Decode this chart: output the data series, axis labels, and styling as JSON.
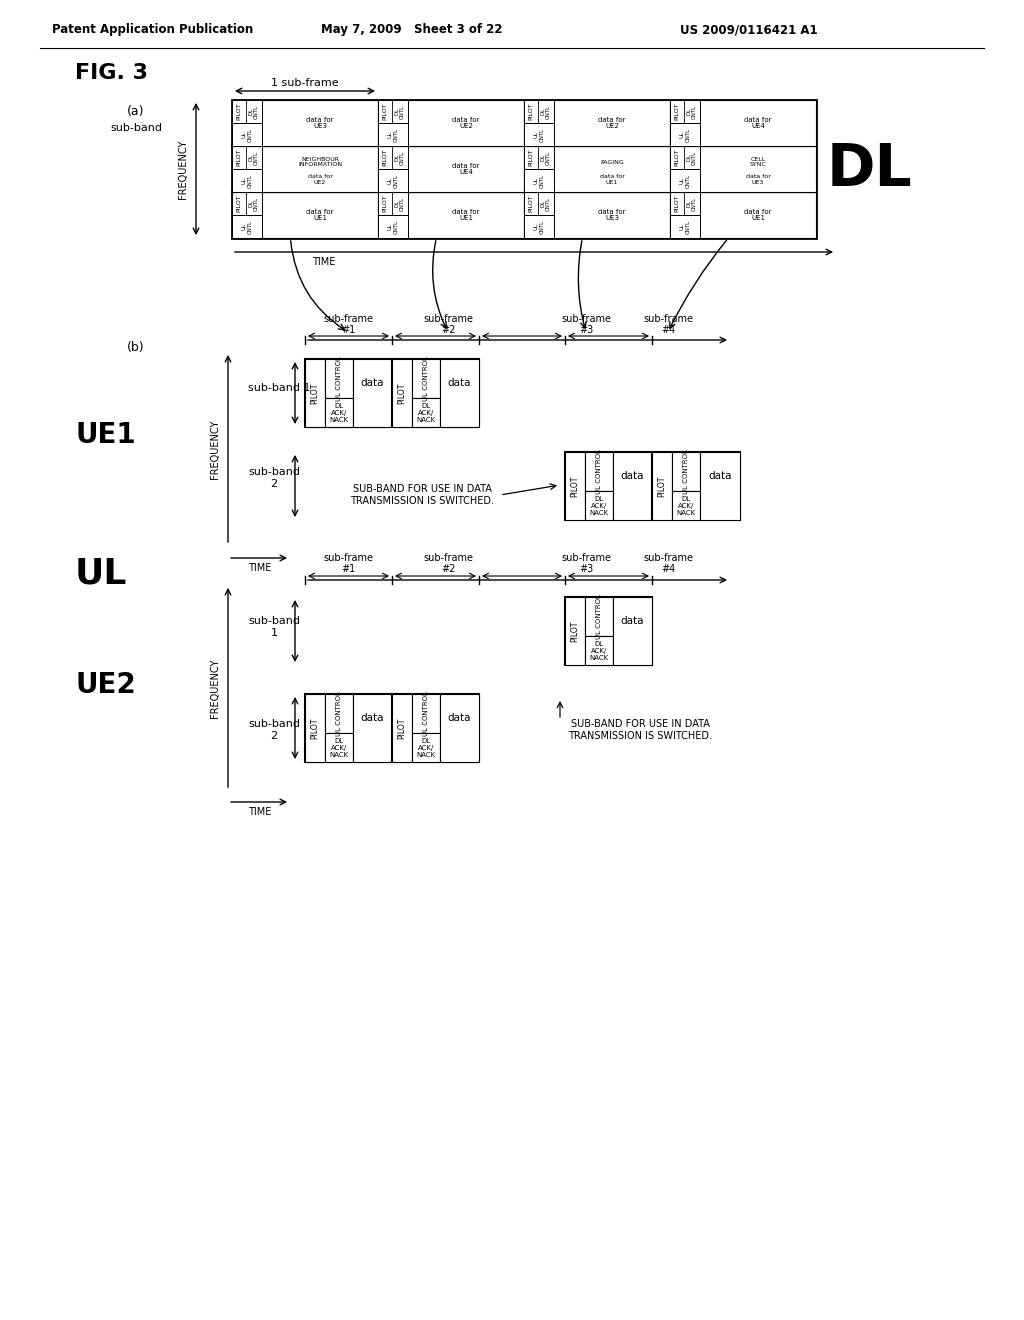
{
  "bg_color": "#ffffff",
  "header_left": "Patent Application Publication",
  "header_mid": "May 7, 2009   Sheet 3 of 22",
  "header_right": "US 2009/0116421 A1"
}
